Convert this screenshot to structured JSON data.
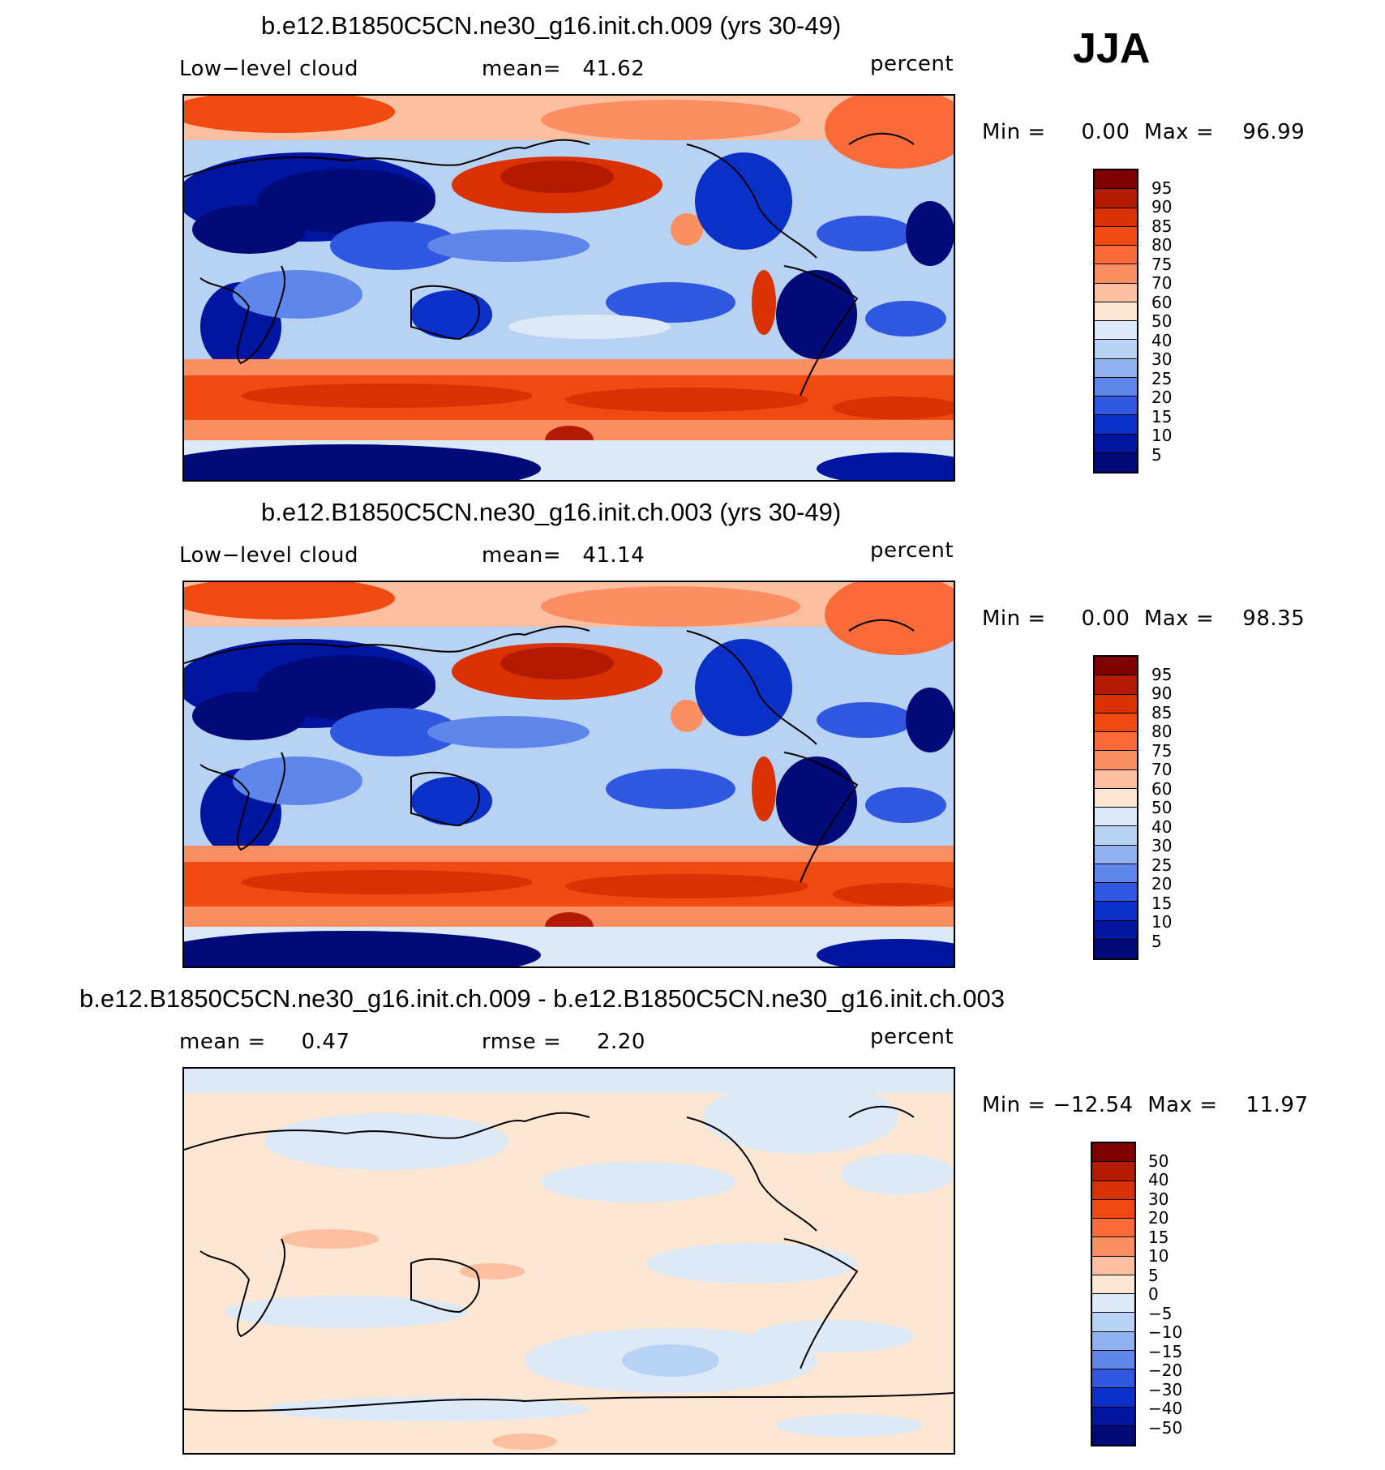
{
  "season": "JJA",
  "panels": [
    {
      "title": "b.e12.B1850C5CN.ne30_g16.init.ch.009 (yrs 30-49)",
      "left_label": "Low−level cloud",
      "center_label": "mean=   41.62",
      "right_label": "percent",
      "minmax": "Min =     0.00  Max =    96.99",
      "type": "field",
      "colorbar_labels": [
        "95",
        "90",
        "85",
        "80",
        "75",
        "70",
        "60",
        "50",
        "40",
        "30",
        "25",
        "20",
        "15",
        "10",
        "5"
      ]
    },
    {
      "title": "b.e12.B1850C5CN.ne30_g16.init.ch.003 (yrs 30-49)",
      "left_label": "Low−level cloud",
      "center_label": "mean=   41.14",
      "right_label": "percent",
      "minmax": "Min =     0.00  Max =    98.35",
      "type": "field",
      "colorbar_labels": [
        "95",
        "90",
        "85",
        "80",
        "75",
        "70",
        "60",
        "50",
        "40",
        "30",
        "25",
        "20",
        "15",
        "10",
        "5"
      ]
    },
    {
      "title": "b.e12.B1850C5CN.ne30_g16.init.ch.009 - b.e12.B1850C5CN.ne30_g16.init.ch.003",
      "left_label": "mean =     0.47",
      "center_label": "rmse =     2.20",
      "right_label": "percent",
      "minmax": "Min = −12.54  Max =    11.97",
      "type": "diff",
      "colorbar_labels": [
        "50",
        "40",
        "30",
        "20",
        "15",
        "10",
        "5",
        "0",
        "−5",
        "−10",
        "−15",
        "−20",
        "−30",
        "−40",
        "−50"
      ]
    }
  ],
  "colors": {
    "scale": [
      "#7f0000",
      "#b31b00",
      "#d93100",
      "#f04a10",
      "#fb6b3a",
      "#fc8f62",
      "#fcbfa0",
      "#fde6d2",
      "#dceaf8",
      "#b8d2f4",
      "#8fb2f0",
      "#5f86ea",
      "#2f57e0",
      "#0a30c8",
      "#0015a0",
      "#000a78"
    ]
  }
}
